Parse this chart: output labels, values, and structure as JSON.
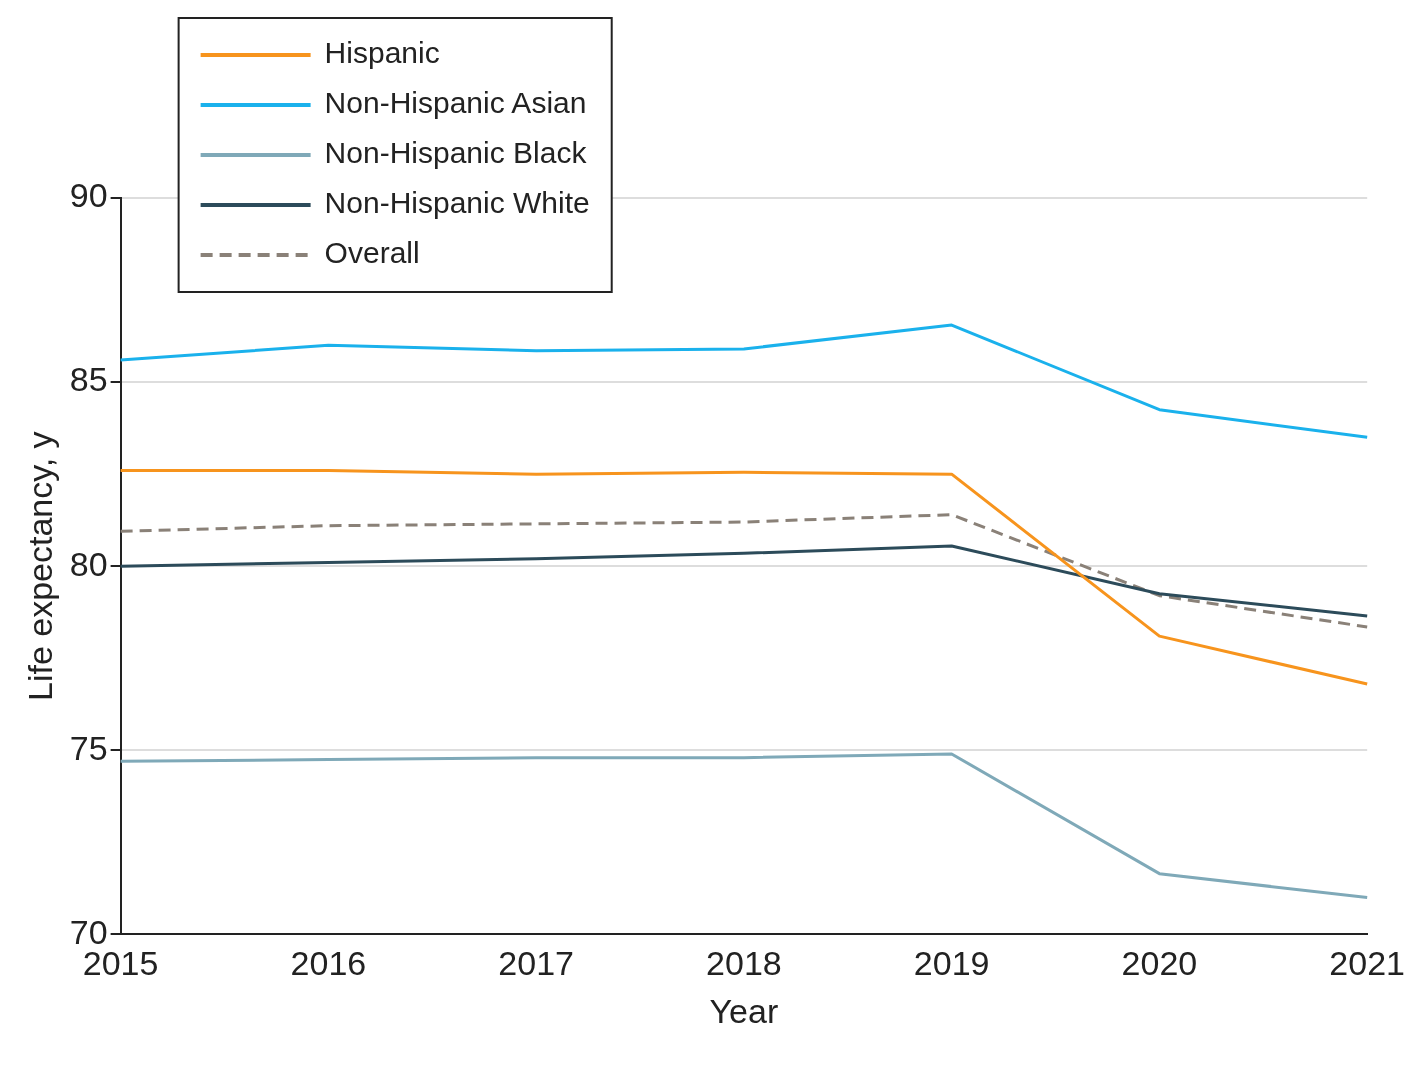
{
  "chart_data": {
    "type": "line",
    "xlabel": "Year",
    "ylabel": "Life expectancy, y",
    "categories": [
      "2015",
      "2016",
      "2017",
      "2018",
      "2019",
      "2020",
      "2021"
    ],
    "series": [
      {
        "name": "Hispanic",
        "color": "#f7941d",
        "values": [
          82.6,
          82.6,
          82.5,
          82.55,
          82.5,
          78.1,
          76.8
        ]
      },
      {
        "name": "Non-Hispanic Asian",
        "color": "#1ab1ec",
        "values": [
          85.6,
          86.0,
          85.85,
          85.9,
          86.55,
          84.25,
          83.5
        ]
      },
      {
        "name": "Non-Hispanic Black",
        "color": "#7fa9b8",
        "values": [
          74.7,
          74.75,
          74.8,
          74.8,
          74.9,
          71.65,
          71.0
        ]
      },
      {
        "name": "Non-Hispanic White",
        "color": "#2c4b5a",
        "values": [
          80.0,
          80.1,
          80.2,
          80.35,
          80.55,
          79.25,
          78.65
        ]
      },
      {
        "name": "Overall",
        "color": "#8a8178",
        "line_style": "dashed",
        "values": [
          80.95,
          81.1,
          81.15,
          81.2,
          81.4,
          79.2,
          78.35
        ]
      }
    ],
    "ylim": [
      70,
      90
    ],
    "yticks": [
      70,
      75,
      80,
      85,
      90
    ],
    "grid": "y",
    "legend": "top left",
    "marker": "none",
    "line_style": "solid"
  }
}
